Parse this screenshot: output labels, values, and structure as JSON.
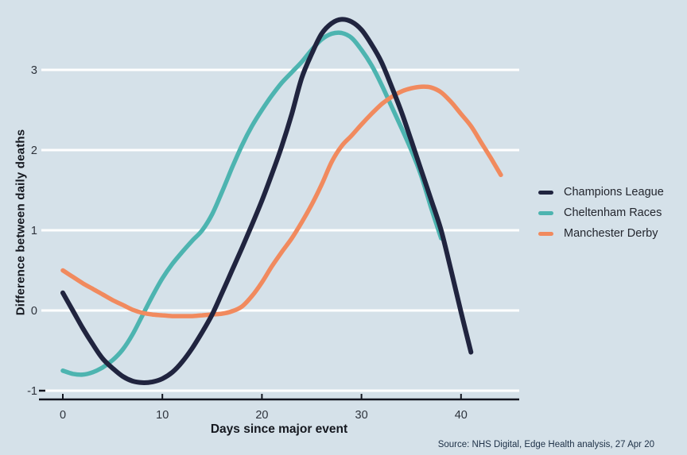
{
  "page": {
    "background_color": "#d5e1e9",
    "gridline_color": "#ffffff",
    "axis_color": "#13151f",
    "tick_label_color": "#2e333c"
  },
  "source_note": "Source: NHS Digital, Edge Health analysis, 27 Apr 20",
  "legend": {
    "items": [
      {
        "label": "Champions League",
        "color": "#20243f"
      },
      {
        "label": "Cheltenham Races",
        "color": "#4db4b0"
      },
      {
        "label": "Manchester Derby",
        "color": "#f18a5e"
      }
    ]
  },
  "chart_data": {
    "type": "line",
    "title": "",
    "xlabel": "Days since major event",
    "ylabel": "Difference between daily deaths",
    "xlim": [
      -2.2,
      45.8
    ],
    "ylim": [
      -1.1,
      3.72
    ],
    "x_ticks": [
      0,
      10,
      20,
      30,
      40
    ],
    "y_ticks": [
      3,
      2,
      1,
      0,
      -1
    ],
    "grid": "horizontal-white",
    "legend_position": "right",
    "series": [
      {
        "name": "Champions League",
        "color": "#20243f",
        "points": [
          [
            0,
            0.22
          ],
          [
            1,
            0.0
          ],
          [
            2,
            -0.22
          ],
          [
            3,
            -0.42
          ],
          [
            4,
            -0.6
          ],
          [
            5,
            -0.72
          ],
          [
            6,
            -0.82
          ],
          [
            7,
            -0.88
          ],
          [
            8,
            -0.9
          ],
          [
            9,
            -0.89
          ],
          [
            10,
            -0.85
          ],
          [
            11,
            -0.77
          ],
          [
            12,
            -0.64
          ],
          [
            13,
            -0.47
          ],
          [
            14,
            -0.27
          ],
          [
            15,
            -0.05
          ],
          [
            16,
            0.22
          ],
          [
            17,
            0.5
          ],
          [
            18,
            0.78
          ],
          [
            19,
            1.07
          ],
          [
            20,
            1.37
          ],
          [
            21,
            1.7
          ],
          [
            22,
            2.05
          ],
          [
            23,
            2.45
          ],
          [
            24,
            2.9
          ],
          [
            25,
            3.2
          ],
          [
            26,
            3.45
          ],
          [
            27,
            3.58
          ],
          [
            28,
            3.63
          ],
          [
            29,
            3.6
          ],
          [
            30,
            3.5
          ],
          [
            31,
            3.32
          ],
          [
            32,
            3.1
          ],
          [
            33,
            2.8
          ],
          [
            34,
            2.48
          ],
          [
            35,
            2.12
          ],
          [
            36,
            1.75
          ],
          [
            37,
            1.38
          ],
          [
            38,
            1.0
          ],
          [
            39,
            0.5
          ],
          [
            40,
            -0.02
          ],
          [
            41,
            -0.52
          ]
        ]
      },
      {
        "name": "Cheltenham Races",
        "color": "#4db4b0",
        "points": [
          [
            0,
            -0.75
          ],
          [
            1,
            -0.79
          ],
          [
            2,
            -0.8
          ],
          [
            3,
            -0.77
          ],
          [
            4,
            -0.71
          ],
          [
            5,
            -0.62
          ],
          [
            6,
            -0.49
          ],
          [
            7,
            -0.3
          ],
          [
            8,
            -0.06
          ],
          [
            9,
            0.18
          ],
          [
            10,
            0.4
          ],
          [
            11,
            0.58
          ],
          [
            12,
            0.73
          ],
          [
            13,
            0.87
          ],
          [
            14,
            1.0
          ],
          [
            15,
            1.2
          ],
          [
            16,
            1.48
          ],
          [
            17,
            1.78
          ],
          [
            18,
            2.06
          ],
          [
            19,
            2.3
          ],
          [
            20,
            2.5
          ],
          [
            21,
            2.68
          ],
          [
            22,
            2.84
          ],
          [
            23,
            2.97
          ],
          [
            24,
            3.1
          ],
          [
            25,
            3.25
          ],
          [
            26,
            3.38
          ],
          [
            27,
            3.45
          ],
          [
            28,
            3.46
          ],
          [
            29,
            3.4
          ],
          [
            30,
            3.25
          ],
          [
            31,
            3.06
          ],
          [
            32,
            2.82
          ],
          [
            33,
            2.55
          ],
          [
            34,
            2.28
          ],
          [
            35,
            2.0
          ],
          [
            36,
            1.68
          ],
          [
            37,
            1.28
          ],
          [
            38,
            0.9
          ]
        ]
      },
      {
        "name": "Manchester Derby",
        "color": "#f18a5e",
        "points": [
          [
            0,
            0.5
          ],
          [
            1,
            0.42
          ],
          [
            2,
            0.34
          ],
          [
            3,
            0.27
          ],
          [
            4,
            0.2
          ],
          [
            5,
            0.13
          ],
          [
            6,
            0.07
          ],
          [
            7,
            0.01
          ],
          [
            8,
            -0.03
          ],
          [
            9,
            -0.05
          ],
          [
            10,
            -0.06
          ],
          [
            11,
            -0.07
          ],
          [
            12,
            -0.07
          ],
          [
            13,
            -0.07
          ],
          [
            14,
            -0.06
          ],
          [
            15,
            -0.05
          ],
          [
            16,
            -0.04
          ],
          [
            17,
            -0.01
          ],
          [
            18,
            0.05
          ],
          [
            19,
            0.18
          ],
          [
            20,
            0.35
          ],
          [
            21,
            0.55
          ],
          [
            22,
            0.73
          ],
          [
            23,
            0.9
          ],
          [
            24,
            1.1
          ],
          [
            25,
            1.32
          ],
          [
            26,
            1.57
          ],
          [
            27,
            1.85
          ],
          [
            28,
            2.05
          ],
          [
            29,
            2.18
          ],
          [
            30,
            2.32
          ],
          [
            31,
            2.45
          ],
          [
            32,
            2.57
          ],
          [
            33,
            2.66
          ],
          [
            34,
            2.73
          ],
          [
            35,
            2.77
          ],
          [
            36,
            2.79
          ],
          [
            37,
            2.78
          ],
          [
            38,
            2.72
          ],
          [
            39,
            2.6
          ],
          [
            40,
            2.45
          ],
          [
            41,
            2.3
          ],
          [
            42,
            2.1
          ],
          [
            43,
            1.9
          ],
          [
            44,
            1.69
          ]
        ]
      }
    ]
  }
}
